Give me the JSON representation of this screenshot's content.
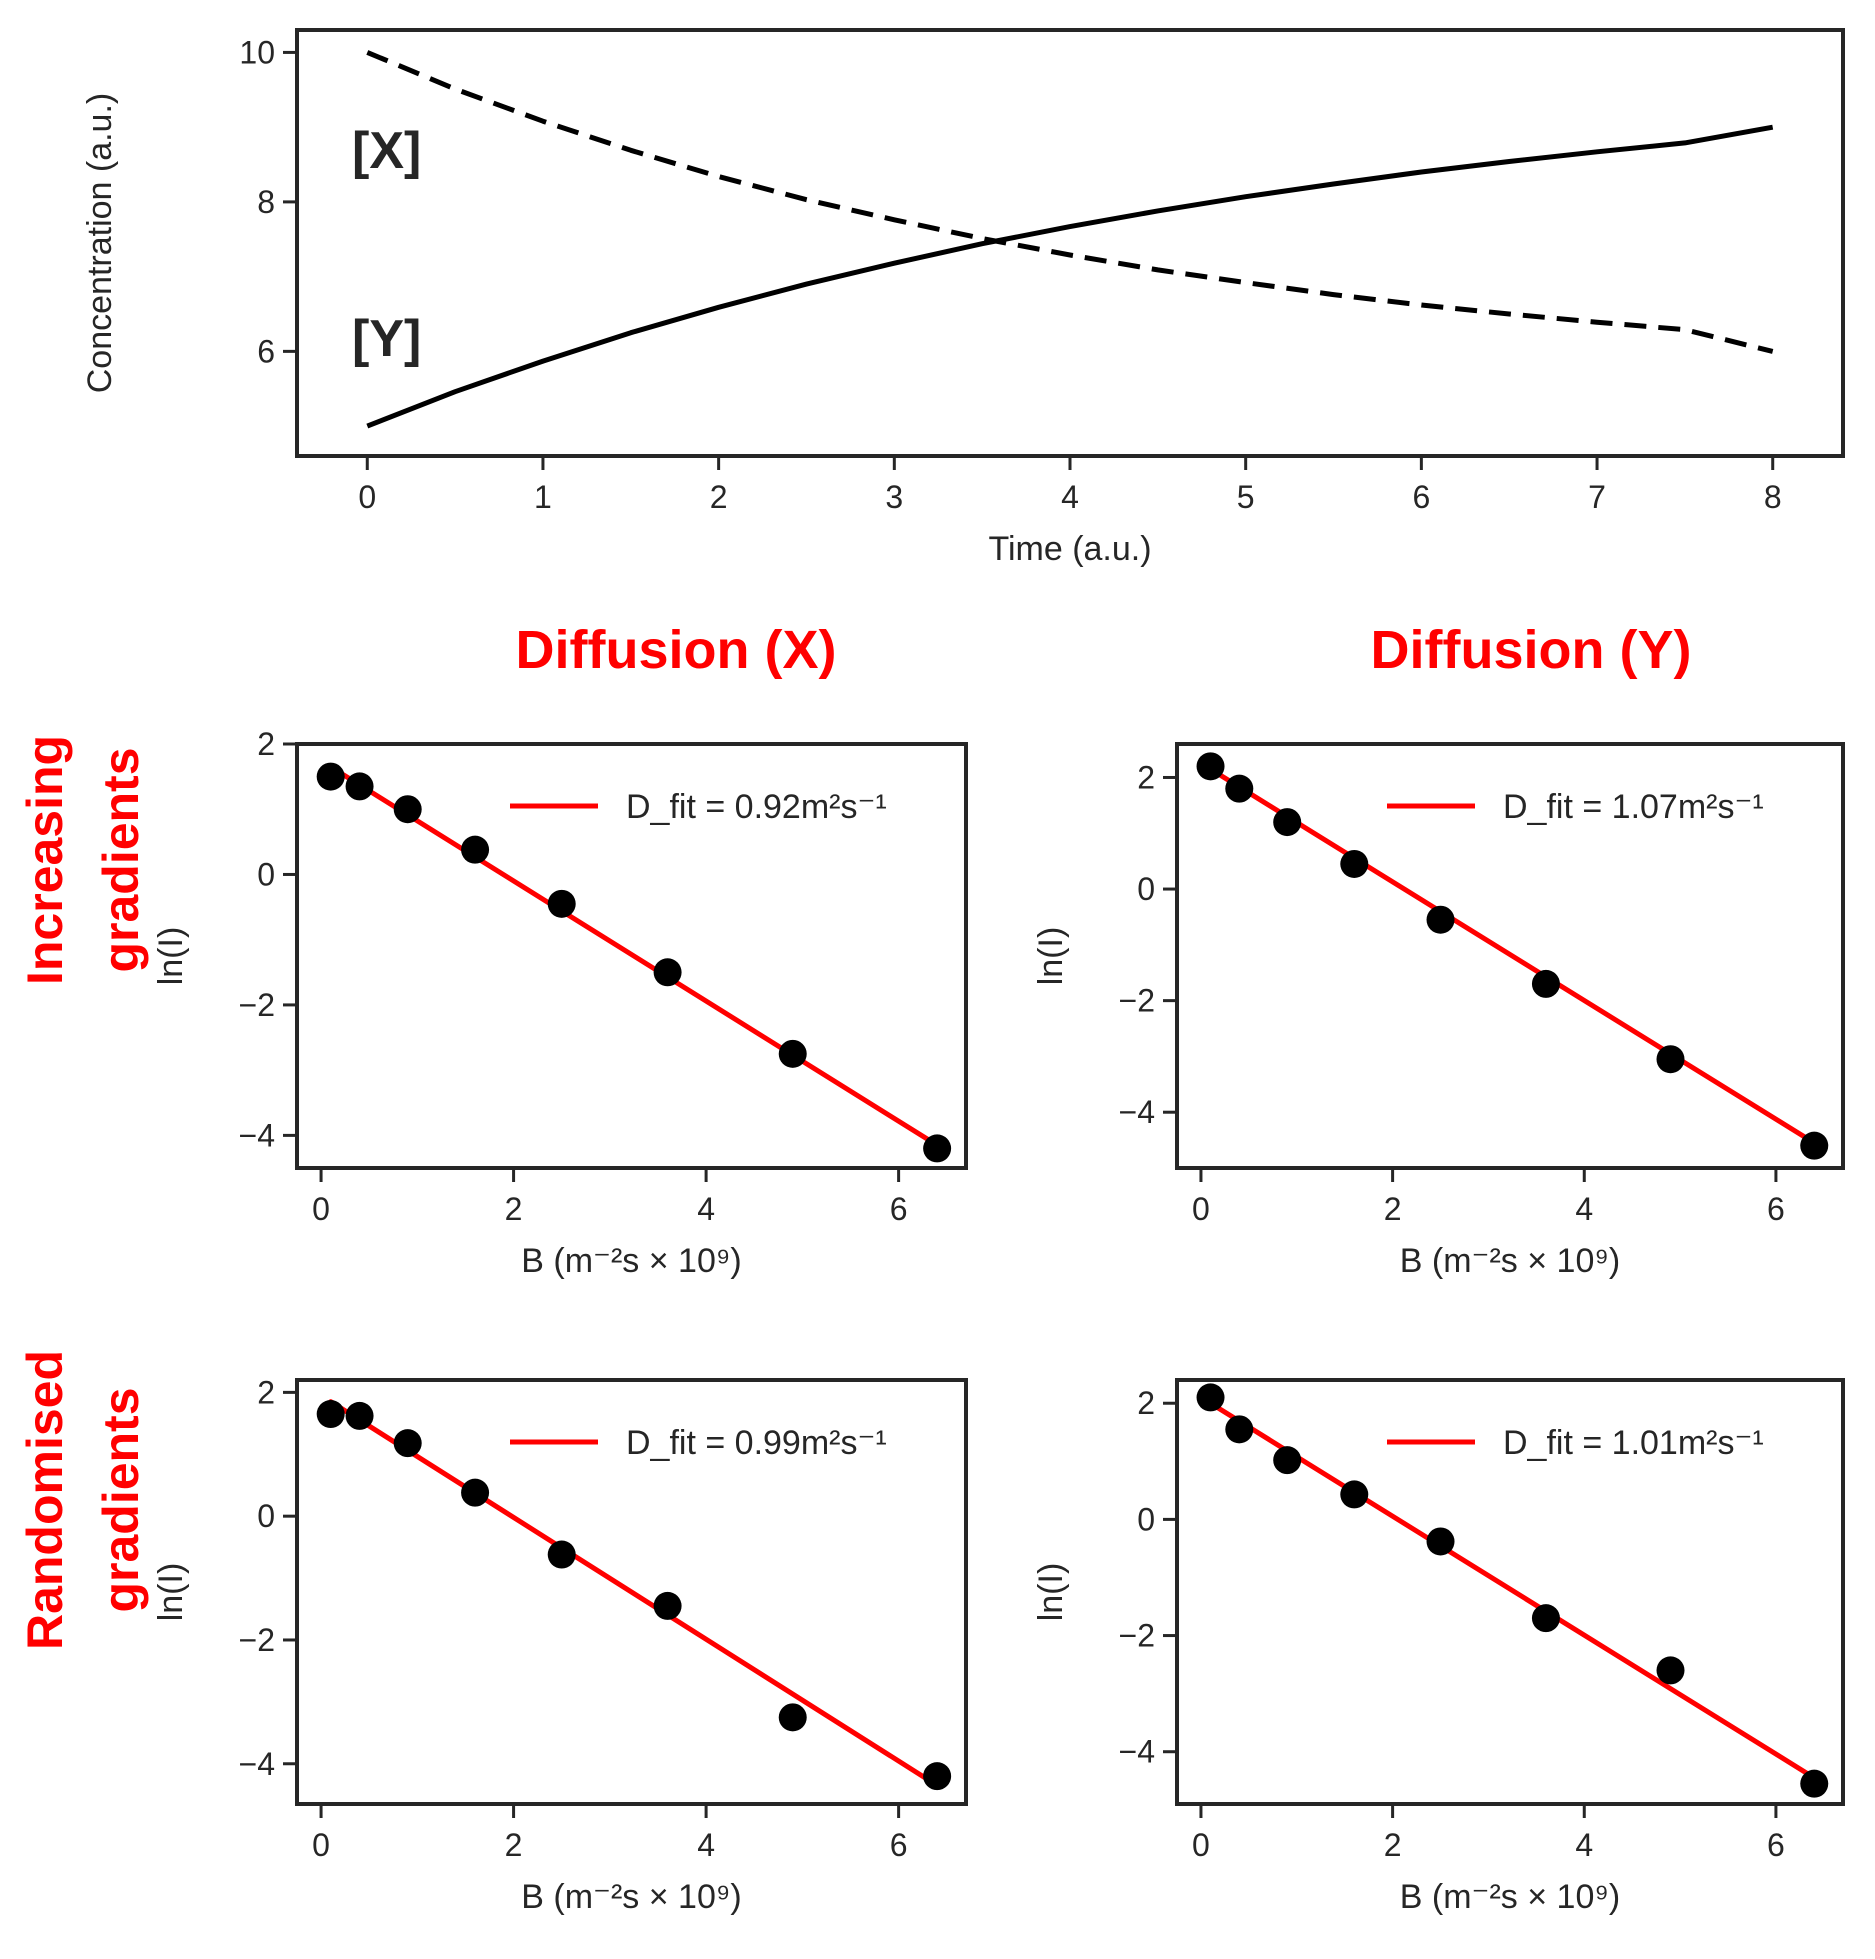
{
  "column_titles": [
    "Diffusion (X)",
    "Diffusion (Y)"
  ],
  "row_titles": [
    [
      "Increasing",
      "gradients"
    ],
    [
      "Randomised",
      "gradients"
    ]
  ],
  "chart_data": [
    {
      "type": "line",
      "xlabel": "Time (a.u.)",
      "ylabel": "Concentration (a.u.)",
      "xlim": [
        -0.4,
        8.4
      ],
      "ylim": [
        4.6,
        10.3
      ],
      "xticks": [
        0,
        1,
        2,
        3,
        4,
        5,
        6,
        7,
        8
      ],
      "yticks": [
        6,
        8,
        10
      ],
      "grid": false,
      "annotations": [
        "[X]",
        "[Y]"
      ],
      "series": [
        {
          "style": "dashed",
          "color": "#000000",
          "x": [
            0,
            0.5,
            1,
            1.5,
            2,
            2.5,
            3,
            3.5,
            4,
            4.5,
            5,
            5.5,
            6,
            6.5,
            7,
            7.5,
            8
          ],
          "values": [
            10.0,
            9.51,
            9.08,
            8.69,
            8.34,
            8.03,
            7.76,
            7.51,
            7.29,
            7.09,
            6.92,
            6.76,
            6.62,
            6.5,
            6.39,
            6.29,
            6.0
          ]
        },
        {
          "style": "solid",
          "color": "#000000",
          "x": [
            0,
            0.5,
            1,
            1.5,
            2,
            2.5,
            3,
            3.5,
            4,
            4.5,
            5,
            5.5,
            6,
            6.5,
            7,
            7.5,
            8
          ],
          "values": [
            5.0,
            5.46,
            5.87,
            6.25,
            6.59,
            6.9,
            7.18,
            7.44,
            7.67,
            7.88,
            8.07,
            8.24,
            8.4,
            8.54,
            8.67,
            8.79,
            9.0
          ]
        }
      ]
    },
    {
      "type": "scatter",
      "xlabel": "B (m⁻²s × 10⁹)",
      "ylabel": "ln(I)",
      "xlim": [
        -0.25,
        6.7
      ],
      "ylim": [
        -4.5,
        2.0
      ],
      "xticks": [
        0,
        2,
        4,
        6
      ],
      "yticks": [
        2,
        0,
        -2,
        -4
      ],
      "legend": "top-right",
      "legend_label": "D_fit = 0.92m²s⁻¹",
      "points": {
        "color": "#000000",
        "x": [
          0.1,
          0.4,
          0.9,
          1.6,
          2.5,
          3.6,
          4.9,
          6.4
        ],
        "values": [
          1.5,
          1.35,
          1.0,
          0.38,
          -0.45,
          -1.5,
          -2.75,
          -4.2
        ]
      },
      "fit": {
        "color": "#ff0000",
        "x": [
          0.1,
          6.4
        ],
        "values": [
          1.65,
          -4.15
        ]
      }
    },
    {
      "type": "scatter",
      "xlabel": "B (m⁻²s × 10⁹)",
      "ylabel": "ln(I)",
      "xlim": [
        -0.25,
        6.7
      ],
      "ylim": [
        -5.0,
        2.6
      ],
      "xticks": [
        0,
        2,
        4,
        6
      ],
      "yticks": [
        2,
        0,
        -2,
        -4
      ],
      "legend": "top-right",
      "legend_label": "D_fit = 1.07m²s⁻¹",
      "points": {
        "color": "#000000",
        "x": [
          0.1,
          0.4,
          0.9,
          1.6,
          2.5,
          3.6,
          4.9,
          6.4
        ],
        "values": [
          2.2,
          1.8,
          1.2,
          0.45,
          -0.55,
          -1.7,
          -3.05,
          -4.6
        ]
      },
      "fit": {
        "color": "#ff0000",
        "x": [
          0.1,
          6.4
        ],
        "values": [
          2.15,
          -4.55
        ]
      }
    },
    {
      "type": "scatter",
      "xlabel": "B (m⁻²s × 10⁹)",
      "ylabel": "ln(I)",
      "xlim": [
        -0.25,
        6.7
      ],
      "ylim": [
        -4.65,
        2.2
      ],
      "xticks": [
        0,
        2,
        4,
        6
      ],
      "yticks": [
        2,
        0,
        -2,
        -4
      ],
      "legend": "top-right",
      "legend_label": "D_fit = 0.99m²s⁻¹",
      "points": {
        "color": "#000000",
        "x": [
          0.1,
          0.4,
          0.9,
          1.6,
          2.5,
          3.6,
          4.9,
          6.4
        ],
        "values": [
          1.65,
          1.62,
          1.18,
          0.38,
          -0.62,
          -1.45,
          -3.25,
          -4.2
        ]
      },
      "fit": {
        "color": "#ff0000",
        "x": [
          0.1,
          6.4
        ],
        "values": [
          1.85,
          -4.35
        ]
      }
    },
    {
      "type": "scatter",
      "xlabel": "B (m⁻²s × 10⁹)",
      "ylabel": "ln(I)",
      "xlim": [
        -0.25,
        6.7
      ],
      "ylim": [
        -4.9,
        2.4
      ],
      "xticks": [
        0,
        2,
        4,
        6
      ],
      "yticks": [
        2,
        0,
        -2,
        -4
      ],
      "legend": "top-right",
      "legend_label": "D_fit = 1.01m²s⁻¹",
      "points": {
        "color": "#000000",
        "x": [
          0.1,
          0.4,
          0.9,
          1.6,
          2.5,
          3.6,
          4.9,
          6.4
        ],
        "values": [
          2.1,
          1.55,
          1.02,
          0.43,
          -0.38,
          -1.7,
          -2.6,
          -4.55
        ]
      },
      "fit": {
        "color": "#ff0000",
        "x": [
          0.1,
          6.4
        ],
        "values": [
          2.0,
          -4.45
        ]
      }
    }
  ]
}
